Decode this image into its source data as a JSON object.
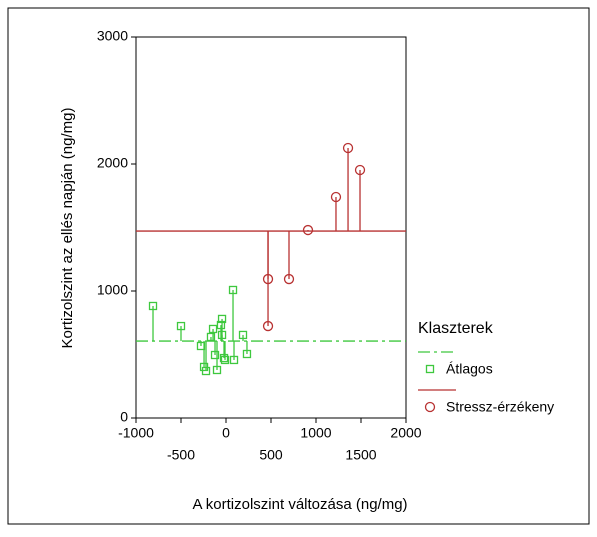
{
  "chart_data": {
    "type": "scatter",
    "x_label": "A kortizolszint változása (ng/mg)",
    "y_label": "Kortizolszint az ellés napján (ng/mg)",
    "legend_title": "Klaszterek",
    "xlim": [
      -1000,
      2000
    ],
    "xticks": [
      -1000,
      -500,
      0,
      500,
      1000,
      1500,
      2000
    ],
    "ylim": [
      0,
      3000
    ],
    "yticks": [
      0,
      1000,
      2000,
      3000
    ],
    "series": [
      {
        "name": "Átlagos",
        "color": "#3ec83e",
        "marker": "square",
        "line_dash": "dashdot",
        "mean": 606,
        "x": [
          -811,
          -500,
          -278,
          -244,
          -222,
          -167,
          -144,
          -122,
          -100,
          -56,
          -44,
          -22,
          -44,
          -11,
          78,
          89,
          189,
          233
        ],
        "values": [
          882,
          724,
          567,
          402,
          370,
          638,
          701,
          496,
          378,
          732,
          780,
          472,
          654,
          457,
          1008,
          457,
          654,
          504
        ]
      },
      {
        "name": "Stressz-érzékeny",
        "color": "#b83232",
        "marker": "circle",
        "line_dash": "solid",
        "mean": 1472,
        "x": [
          467,
          467,
          700,
          911,
          1222,
          1356,
          1489
        ],
        "values": [
          1094,
          724,
          1094,
          1480,
          1740,
          2126,
          1953
        ]
      }
    ]
  }
}
